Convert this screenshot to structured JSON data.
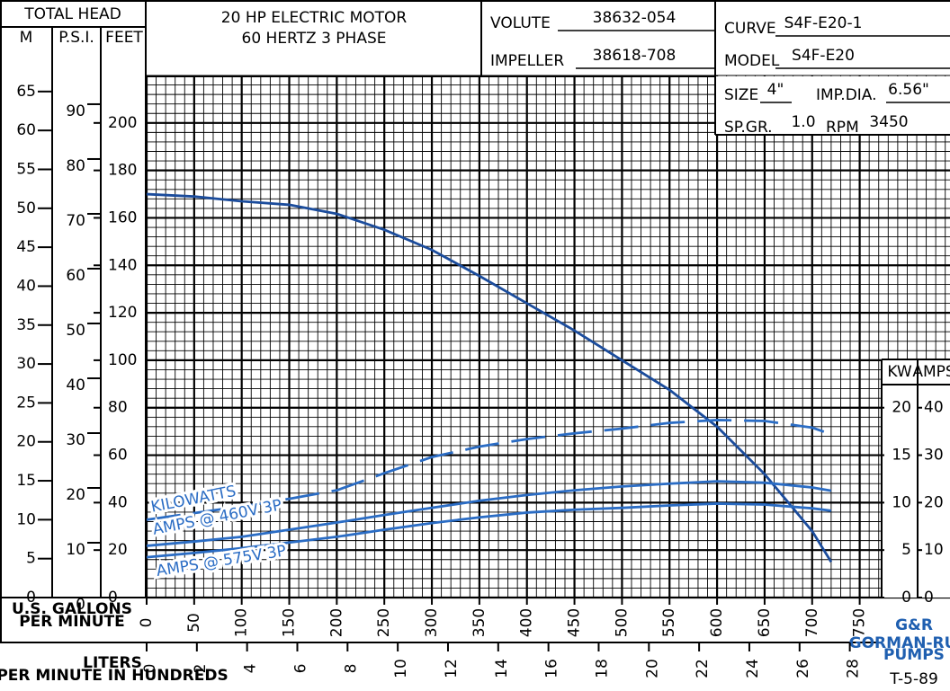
{
  "chart_data": {
    "type": "line",
    "header": "TOTAL HEAD",
    "title": "20 HP ELECTRIC MOTOR",
    "subtitle": "60 HERTZ 3 PHASE",
    "info": [
      {
        "label": "VOLUTE",
        "value": "38632-054"
      },
      {
        "label": "CURVE",
        "value": "S4F-E20-1"
      },
      {
        "label": "IMPELLER",
        "value": "38618-708"
      },
      {
        "label": "MODEL",
        "value": "S4F-E20"
      },
      {
        "label": "SIZE",
        "value": "4\""
      },
      {
        "label": "IMP.DIA.",
        "value": "6.56\""
      },
      {
        "label": "SP.GR.",
        "value": "1.0"
      },
      {
        "label": "RPM",
        "value": "3450"
      }
    ],
    "xlabel": [
      "U.S. GALLONS",
      "PER MINUTE"
    ],
    "xlim": [
      0,
      845
    ],
    "xticks": [
      0,
      50,
      100,
      150,
      200,
      250,
      300,
      350,
      400,
      450,
      500,
      550,
      600,
      650,
      700,
      750
    ],
    "x2label": [
      "LITERS",
      "PER MINUTE IN HUNDREDS"
    ],
    "x2lim": [
      0,
      31.99
    ],
    "x2ticks": [
      0,
      2,
      4,
      6,
      8,
      10,
      12,
      14,
      16,
      18,
      20,
      22,
      24,
      26,
      28
    ],
    "yaxes": {
      "feet": {
        "label": "FEET",
        "lim": [
          0,
          220
        ],
        "ticks": [
          0,
          20,
          40,
          60,
          80,
          100,
          120,
          140,
          160,
          180,
          200
        ]
      },
      "m": {
        "label": "M",
        "lim": [
          0,
          67.06
        ],
        "ticks": [
          0,
          5,
          10,
          15,
          20,
          25,
          30,
          35,
          40,
          45,
          50,
          55,
          60,
          65
        ]
      },
      "psi": {
        "label": "P.S.I.",
        "lim": [
          0,
          95.24
        ],
        "ticks": [
          0,
          10,
          20,
          30,
          40,
          50,
          60,
          70,
          80,
          90
        ]
      },
      "kw": {
        "label": "KW",
        "lim": [
          0,
          55
        ],
        "ticks": [
          0,
          5,
          10,
          15,
          20
        ]
      },
      "amps": {
        "label": "AMPS",
        "lim": [
          0,
          110
        ],
        "ticks": [
          0,
          10,
          20,
          30,
          40
        ]
      }
    },
    "grid": true,
    "x": [
      0,
      50,
      100,
      150,
      200,
      250,
      300,
      350,
      400,
      450,
      500,
      550,
      600,
      650,
      700,
      720
    ],
    "series": [
      {
        "axis": "feet",
        "color": "#1b4c9c",
        "dash": false,
        "values": [
          170,
          169,
          167,
          165.5,
          161.7,
          155,
          146.5,
          135.5,
          124,
          112.5,
          100,
          87.5,
          72,
          52,
          28,
          15
        ]
      },
      {
        "name": "KILOWATTS",
        "axis": "kw",
        "color": "#2a6cc4",
        "dash": true,
        "values": [
          8.2,
          8.9,
          9.6,
          10.4,
          11.3,
          13.1,
          14.8,
          15.9,
          16.7,
          17.3,
          17.8,
          18.4,
          18.7,
          18.6,
          17.9,
          17.2
        ]
      },
      {
        "name": "AMPS @ 460V 3P",
        "axis": "amps",
        "color": "#2a6cc4",
        "dash": false,
        "values": [
          10.9,
          11.8,
          12.8,
          14.3,
          15.8,
          17.4,
          18.9,
          20.4,
          21.6,
          22.6,
          23.4,
          24.0,
          24.5,
          24.2,
          23.2,
          22.5
        ]
      },
      {
        "name": "AMPS @ 575V 3P",
        "axis": "amps",
        "color": "#2a6cc4",
        "dash": false,
        "values": [
          8.5,
          9.4,
          10.4,
          11.6,
          12.8,
          14.3,
          15.7,
          16.9,
          17.9,
          18.5,
          18.9,
          19.4,
          19.8,
          19.6,
          18.8,
          18.3
        ]
      }
    ],
    "logo": {
      "mark": "G&R",
      "name": "GORMAN-RUPP",
      "pumps": "PUMPS"
    },
    "code": "T-5-89"
  }
}
